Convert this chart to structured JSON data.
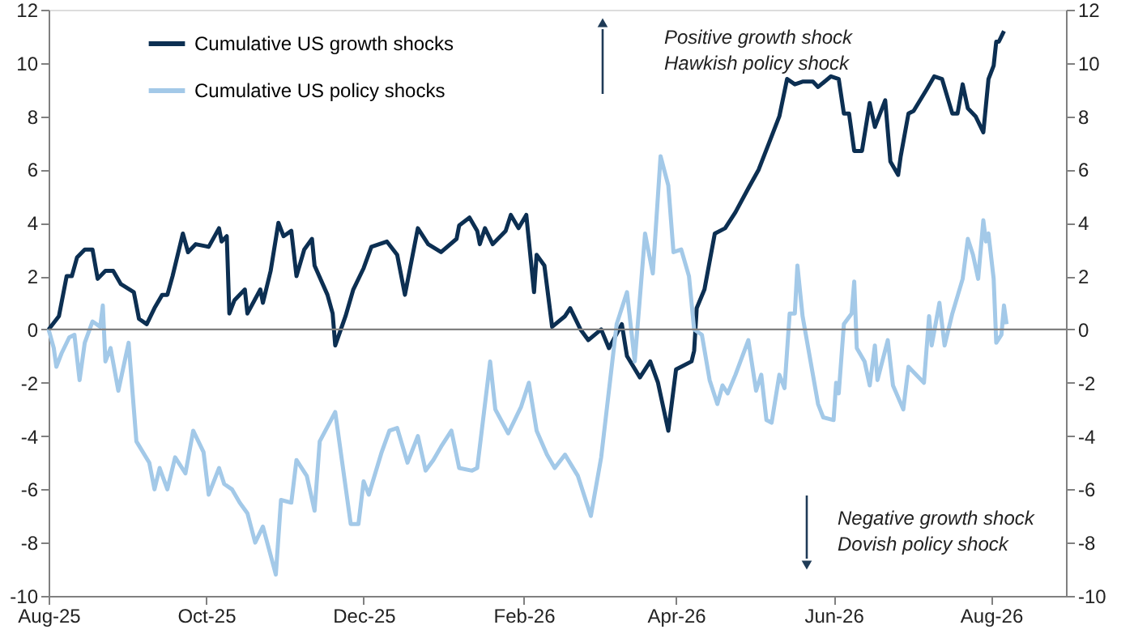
{
  "chart_data": {
    "type": "line",
    "x": [
      "2025-08-01",
      "2025-08-05",
      "2025-08-08",
      "2025-08-10",
      "2025-08-12",
      "2025-08-15",
      "2025-08-18",
      "2025-08-20",
      "2025-08-23",
      "2025-08-26",
      "2025-08-29",
      "2025-09-03",
      "2025-09-05",
      "2025-09-08",
      "2025-09-11",
      "2025-09-14",
      "2025-09-16",
      "2025-09-18",
      "2025-09-22",
      "2025-09-24",
      "2025-09-27",
      "2025-10-02",
      "2025-10-06",
      "2025-10-07",
      "2025-10-09",
      "2025-10-10",
      "2025-10-12",
      "2025-10-16",
      "2025-10-17",
      "2025-10-22",
      "2025-10-23",
      "2025-10-26",
      "2025-10-29",
      "2025-10-31",
      "2025-11-03",
      "2025-11-05",
      "2025-11-08",
      "2025-11-11",
      "2025-11-12",
      "2025-11-17",
      "2025-11-19",
      "2025-11-20",
      "2025-11-24",
      "2025-11-27",
      "2025-12-01",
      "2025-12-04",
      "2025-12-10",
      "2025-12-14",
      "2025-12-17",
      "2025-12-22",
      "2025-12-26",
      "2025-12-31",
      "2026-01-06",
      "2026-01-07",
      "2026-01-11",
      "2026-01-14",
      "2026-01-15",
      "2026-01-17",
      "2026-01-20",
      "2026-01-25",
      "2026-01-27",
      "2026-01-30",
      "2026-02-02",
      "2026-02-05",
      "2026-02-06",
      "2026-02-09",
      "2026-02-12",
      "2026-02-17",
      "2026-02-19",
      "2026-02-23",
      "2026-02-26",
      "2026-03-03",
      "2026-03-06",
      "2026-03-11",
      "2026-03-13",
      "2026-03-18",
      "2026-03-22",
      "2026-03-25",
      "2026-03-29",
      "2026-04-01",
      "2026-04-07",
      "2026-04-08",
      "2026-04-09",
      "2026-04-12",
      "2026-04-16",
      "2026-04-20",
      "2026-04-24",
      "2026-04-29",
      "2026-05-03",
      "2026-05-07",
      "2026-05-11",
      "2026-05-14",
      "2026-05-17",
      "2026-05-20",
      "2026-05-24",
      "2026-05-26",
      "2026-05-31",
      "2026-06-03",
      "2026-06-05",
      "2026-06-07",
      "2026-06-09",
      "2026-06-12",
      "2026-06-15",
      "2026-06-17",
      "2026-06-21",
      "2026-06-23",
      "2026-06-26",
      "2026-06-27",
      "2026-06-30",
      "2026-07-02",
      "2026-07-07",
      "2026-07-10",
      "2026-07-13",
      "2026-07-17",
      "2026-07-19",
      "2026-07-21",
      "2026-07-23",
      "2026-07-26",
      "2026-07-29",
      "2026-07-31",
      "2026-08-02",
      "2026-08-03",
      "2026-08-04",
      "2026-08-06"
    ],
    "series": [
      {
        "name": "Cumulative US growth shocks",
        "color": "#0c2f52",
        "values": [
          0,
          0.5,
          2.0,
          2.0,
          2.7,
          3.0,
          3.0,
          1.9,
          2.2,
          2.2,
          1.7,
          1.4,
          0.4,
          0.2,
          0.8,
          1.3,
          1.3,
          2.0,
          3.6,
          2.9,
          3.2,
          3.1,
          3.8,
          3.3,
          3.5,
          0.6,
          1.1,
          1.5,
          0.6,
          1.5,
          1.0,
          2.2,
          4.0,
          3.5,
          3.7,
          2.0,
          3.0,
          3.4,
          2.4,
          1.3,
          0.6,
          -0.6,
          0.5,
          1.5,
          2.3,
          3.1,
          3.3,
          2.8,
          1.3,
          3.8,
          3.2,
          2.9,
          3.4,
          3.9,
          4.2,
          3.7,
          3.2,
          3.8,
          3.2,
          3.7,
          4.3,
          3.8,
          4.3,
          1.4,
          2.8,
          2.4,
          0.1,
          0.5,
          0.8,
          0.0,
          -0.4,
          0.0,
          -0.7,
          0.2,
          -1.0,
          -1.8,
          -1.2,
          -2.0,
          -3.8,
          -1.5,
          -1.2,
          -0.8,
          0.8,
          1.5,
          3.6,
          3.8,
          4.4,
          5.3,
          6.0,
          7.0,
          8.0,
          9.4,
          9.2,
          9.3,
          9.3,
          9.1,
          9.5,
          9.4,
          8.1,
          8.1,
          6.7,
          6.7,
          8.5,
          7.6,
          8.6,
          6.3,
          5.8,
          6.5,
          8.1,
          8.2,
          9.0,
          9.5,
          9.4,
          8.1,
          8.1,
          9.2,
          8.3,
          8.0,
          7.4,
          9.4,
          9.9,
          10.8,
          10.8,
          11.2
        ]
      },
      {
        "name": "Cumulative US policy shocks",
        "color": "#a3c9e8",
        "x": [
          "2025-08-01",
          "2025-08-03",
          "2025-08-04",
          "2025-08-06",
          "2025-08-09",
          "2025-08-11",
          "2025-08-13",
          "2025-08-15",
          "2025-08-18",
          "2025-08-21",
          "2025-08-22",
          "2025-08-23",
          "2025-08-25",
          "2025-08-28",
          "2025-09-01",
          "2025-09-04",
          "2025-09-09",
          "2025-09-11",
          "2025-09-13",
          "2025-09-16",
          "2025-09-19",
          "2025-09-23",
          "2025-09-26",
          "2025-09-30",
          "2025-10-02",
          "2025-10-06",
          "2025-10-08",
          "2025-10-11",
          "2025-10-14",
          "2025-10-17",
          "2025-10-20",
          "2025-10-23",
          "2025-10-28",
          "2025-10-30",
          "2025-11-03",
          "2025-11-05",
          "2025-11-09",
          "2025-11-12",
          "2025-11-14",
          "2025-11-20",
          "2025-11-26",
          "2025-11-29",
          "2025-12-01",
          "2025-12-03",
          "2025-12-08",
          "2025-12-11",
          "2025-12-14",
          "2025-12-18",
          "2025-12-22",
          "2025-12-25",
          "2025-12-28",
          "2025-12-31",
          "2026-01-04",
          "2026-01-07",
          "2026-01-12",
          "2026-01-14",
          "2026-01-17",
          "2026-01-19",
          "2026-01-21",
          "2026-01-26",
          "2026-01-31",
          "2026-02-03",
          "2026-02-06",
          "2026-02-10",
          "2026-02-13",
          "2026-02-17",
          "2026-02-22",
          "2026-02-27",
          "2026-03-03",
          "2026-03-06",
          "2026-03-09",
          "2026-03-13",
          "2026-03-16",
          "2026-03-20",
          "2026-03-23",
          "2026-03-26",
          "2026-03-29",
          "2026-03-31",
          "2026-04-03",
          "2026-04-06",
          "2026-04-08",
          "2026-04-11",
          "2026-04-14",
          "2026-04-17",
          "2026-04-19",
          "2026-04-21",
          "2026-04-24",
          "2026-04-29",
          "2026-05-02",
          "2026-05-04",
          "2026-05-06",
          "2026-05-08",
          "2026-05-11",
          "2026-05-13",
          "2026-05-15",
          "2026-05-17",
          "2026-05-18",
          "2026-05-20",
          "2026-05-26",
          "2026-05-28",
          "2026-06-01",
          "2026-06-02",
          "2026-06-03",
          "2026-06-05",
          "2026-06-08",
          "2026-06-09",
          "2026-06-10",
          "2026-06-13",
          "2026-06-15",
          "2026-06-17",
          "2026-06-18",
          "2026-06-22",
          "2026-06-24",
          "2026-06-28",
          "2026-06-30",
          "2026-07-06",
          "2026-07-08",
          "2026-07-09",
          "2026-07-12",
          "2026-07-14",
          "2026-07-17",
          "2026-07-21",
          "2026-07-23",
          "2026-07-25",
          "2026-07-27",
          "2026-07-29",
          "2026-07-30",
          "2026-07-31",
          "2026-08-02",
          "2026-08-03",
          "2026-08-05",
          "2026-08-06",
          "2026-08-07"
        ],
        "values": [
          0,
          -0.7,
          -1.4,
          -0.9,
          -0.3,
          -0.2,
          -1.9,
          -0.5,
          0.3,
          0.1,
          0.9,
          -1.2,
          -0.7,
          -2.3,
          -0.5,
          -4.2,
          -5.0,
          -6.0,
          -5.2,
          -6.0,
          -4.8,
          -5.4,
          -3.8,
          -4.6,
          -6.2,
          -5.2,
          -5.8,
          -6.0,
          -6.5,
          -6.9,
          -8.0,
          -7.4,
          -9.2,
          -6.4,
          -6.5,
          -4.9,
          -5.5,
          -6.8,
          -4.2,
          -3.1,
          -7.3,
          -7.3,
          -5.7,
          -6.2,
          -4.6,
          -3.8,
          -3.7,
          -5.0,
          -4.0,
          -5.3,
          -4.9,
          -4.4,
          -3.8,
          -5.2,
          -5.3,
          -5.2,
          -2.8,
          -1.2,
          -3.0,
          -3.9,
          -2.9,
          -2.0,
          -3.8,
          -4.7,
          -5.2,
          -4.7,
          -5.5,
          -7.0,
          -4.8,
          -2.3,
          0.2,
          1.4,
          -1.2,
          3.6,
          2.1,
          6.5,
          5.4,
          2.9,
          3.0,
          2.0,
          0.0,
          -0.2,
          -1.9,
          -2.8,
          -2.1,
          -2.4,
          -1.7,
          -0.4,
          -2.3,
          -1.7,
          -3.4,
          -3.5,
          -1.7,
          -2.2,
          0.6,
          0.6,
          2.4,
          0.5,
          -2.8,
          -3.3,
          -3.4,
          -2.0,
          -2.4,
          0.2,
          0.6,
          1.8,
          -0.7,
          -1.2,
          -2.1,
          -0.6,
          -1.9,
          -0.4,
          -2.1,
          -3.0,
          -1.4,
          -2.0,
          0.5,
          -0.6,
          1.0,
          -0.6,
          0.6,
          1.9,
          3.4,
          2.8,
          1.9,
          4.1,
          3.3,
          3.6,
          1.9,
          -0.5,
          -0.2,
          0.9,
          0.2
        ]
      }
    ],
    "xlim": [
      "2025-08-01",
      "2026-08-30"
    ],
    "xticks": [
      {
        "value": "2025-08-01",
        "label": "Aug-25"
      },
      {
        "value": "2025-10-01",
        "label": "Oct-25"
      },
      {
        "value": "2025-12-01",
        "label": "Dec-25"
      },
      {
        "value": "2026-02-01",
        "label": "Feb-26"
      },
      {
        "value": "2026-04-01",
        "label": "Apr-26"
      },
      {
        "value": "2026-06-01",
        "label": "Jun-26"
      },
      {
        "value": "2026-08-01",
        "label": "Aug-26"
      }
    ],
    "ylim": [
      -10,
      12
    ],
    "yticks": [
      -10,
      -8,
      -6,
      -4,
      -2,
      0,
      2,
      4,
      6,
      8,
      10,
      12
    ],
    "y2lim": [
      -10,
      12
    ],
    "y2ticks": [
      -10,
      -8,
      -6,
      -4,
      -2,
      0,
      2,
      4,
      6,
      8,
      10,
      12
    ],
    "ref_lines": [
      {
        "axis": "y",
        "value": 0,
        "color": "#808080"
      }
    ],
    "annotations": [
      "Positive growth shock\nHawkish policy shock",
      "Negative growth shock\nDovish policy shock"
    ],
    "legend": "top left",
    "grid": false,
    "line_style": "solid",
    "marker": "none"
  }
}
